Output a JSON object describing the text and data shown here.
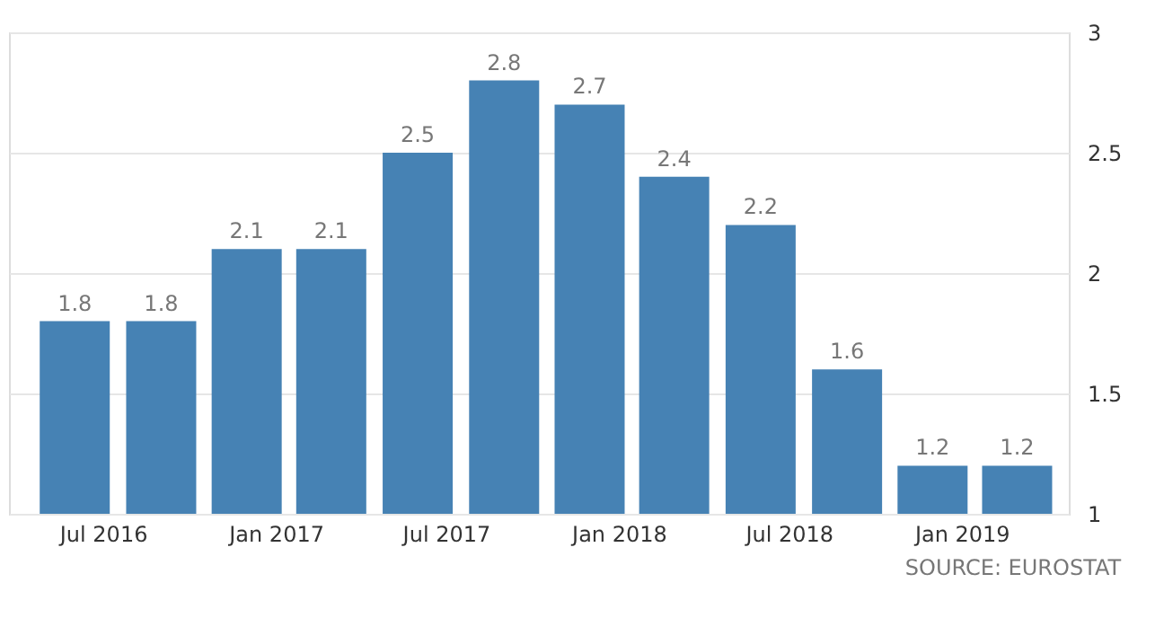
{
  "chart_data": {
    "type": "bar",
    "x": [
      "2016-06",
      "2016-09",
      "2016-12",
      "2017-03",
      "2017-06",
      "2017-09",
      "2017-12",
      "2018-03",
      "2018-06",
      "2018-09",
      "2018-12",
      "2019-03"
    ],
    "values": [
      1.8,
      1.8,
      2.1,
      2.1,
      2.5,
      2.8,
      2.7,
      2.4,
      2.2,
      1.6,
      1.2,
      1.2
    ],
    "color": "#4682b4",
    "data_labels": true,
    "xlim": [
      "2016-03-23",
      "2019-04-25"
    ],
    "xticks": [
      {
        "value": "2016-07",
        "label": "Jul 2016"
      },
      {
        "value": "2017-01",
        "label": "Jan 2017"
      },
      {
        "value": "2017-07",
        "label": "Jul 2017"
      },
      {
        "value": "2018-01",
        "label": "Jan 2018"
      },
      {
        "value": "2018-07",
        "label": "Jul 2018"
      },
      {
        "value": "2019-01",
        "label": "Jan 2019"
      }
    ],
    "ylim": [
      1,
      3
    ],
    "yticks": [
      1,
      1.5,
      2,
      2.5,
      3
    ],
    "grid": "y",
    "annotations": [
      "SOURCE: EUROSTAT"
    ]
  }
}
